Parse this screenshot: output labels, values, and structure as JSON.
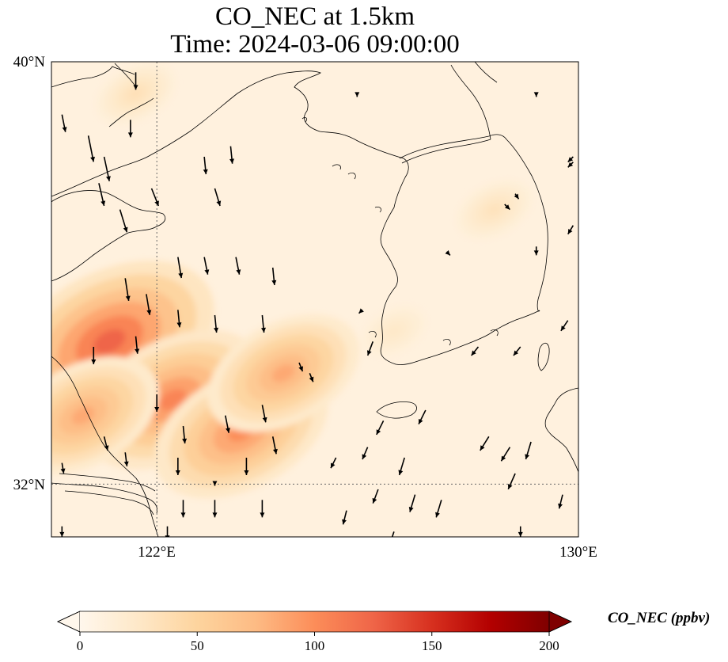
{
  "title": {
    "line1": "CO_NEC at 1.5km",
    "line2": "Time: 2024-03-06 09:00:00"
  },
  "map": {
    "lon_range": [
      120,
      130
    ],
    "lat_range": [
      31,
      40
    ],
    "lat_ticks": [
      {
        "value": 40,
        "label": "40°N"
      },
      {
        "value": 32,
        "label": "32°N"
      }
    ],
    "lon_ticks": [
      {
        "value": 122,
        "label": "122°E"
      },
      {
        "value": 130,
        "label": "130°E"
      }
    ],
    "gridlines": {
      "lon": [
        122
      ],
      "lat": [
        32
      ],
      "style": "dotted"
    },
    "field": {
      "name": "CO_NEC",
      "units": "ppbv",
      "background_value": 10,
      "plumes": [
        {
          "lon": 121.1,
          "lat": 34.7,
          "value": 125
        },
        {
          "lon": 122.3,
          "lat": 33.6,
          "value": 105
        },
        {
          "lon": 123.6,
          "lat": 33.0,
          "value": 100
        },
        {
          "lon": 124.4,
          "lat": 34.1,
          "value": 85
        },
        {
          "lon": 120.6,
          "lat": 33.3,
          "value": 85
        },
        {
          "lon": 121.6,
          "lat": 39.4,
          "value": 35
        },
        {
          "lon": 128.4,
          "lat": 37.2,
          "value": 32
        },
        {
          "lon": 126.5,
          "lat": 34.9,
          "value": 25
        }
      ]
    }
  },
  "wind_vectors": [
    {
      "lon": 121.6,
      "lat": 39.8,
      "u": 0.0,
      "v": -1.0
    },
    {
      "lon": 120.2,
      "lat": 39.0,
      "u": 0.2,
      "v": -1.0
    },
    {
      "lon": 120.7,
      "lat": 38.6,
      "u": 0.3,
      "v": -1.5
    },
    {
      "lon": 121.5,
      "lat": 38.9,
      "u": 0.0,
      "v": -1.0
    },
    {
      "lon": 121.0,
      "lat": 38.2,
      "u": 0.3,
      "v": -1.4
    },
    {
      "lon": 120.9,
      "lat": 37.7,
      "u": 0.3,
      "v": -1.3
    },
    {
      "lon": 121.3,
      "lat": 37.2,
      "u": 0.4,
      "v": -1.3
    },
    {
      "lon": 121.9,
      "lat": 37.6,
      "u": 0.4,
      "v": -1.0
    },
    {
      "lon": 122.9,
      "lat": 38.2,
      "u": 0.1,
      "v": -1.0
    },
    {
      "lon": 123.4,
      "lat": 38.4,
      "u": 0.1,
      "v": -1.0
    },
    {
      "lon": 123.1,
      "lat": 37.6,
      "u": 0.3,
      "v": -1.0
    },
    {
      "lon": 121.4,
      "lat": 35.9,
      "u": 0.2,
      "v": -1.3
    },
    {
      "lon": 121.8,
      "lat": 35.6,
      "u": 0.2,
      "v": -1.2
    },
    {
      "lon": 122.4,
      "lat": 36.3,
      "u": 0.2,
      "v": -1.2
    },
    {
      "lon": 122.9,
      "lat": 36.3,
      "u": 0.2,
      "v": -1.0
    },
    {
      "lon": 123.5,
      "lat": 36.3,
      "u": 0.2,
      "v": -1.0
    },
    {
      "lon": 124.2,
      "lat": 36.1,
      "u": 0.1,
      "v": -1.0
    },
    {
      "lon": 122.4,
      "lat": 35.3,
      "u": 0.1,
      "v": -1.0
    },
    {
      "lon": 123.1,
      "lat": 35.2,
      "u": 0.1,
      "v": -1.0
    },
    {
      "lon": 124.0,
      "lat": 35.2,
      "u": 0.1,
      "v": -1.0
    },
    {
      "lon": 120.8,
      "lat": 34.6,
      "u": 0.0,
      "v": -1.0
    },
    {
      "lon": 121.6,
      "lat": 34.8,
      "u": 0.1,
      "v": -1.0
    },
    {
      "lon": 124.7,
      "lat": 34.3,
      "u": 0.2,
      "v": -0.5
    },
    {
      "lon": 124.9,
      "lat": 34.1,
      "u": 0.2,
      "v": -0.5
    },
    {
      "lon": 122.0,
      "lat": 33.7,
      "u": 0.0,
      "v": -1.0
    },
    {
      "lon": 123.3,
      "lat": 33.3,
      "u": 0.2,
      "v": -1.0
    },
    {
      "lon": 124.0,
      "lat": 33.5,
      "u": 0.2,
      "v": -1.0
    },
    {
      "lon": 122.5,
      "lat": 33.1,
      "u": 0.1,
      "v": -1.0
    },
    {
      "lon": 124.2,
      "lat": 32.9,
      "u": 0.2,
      "v": -1.0
    },
    {
      "lon": 121.0,
      "lat": 32.9,
      "u": 0.2,
      "v": -0.8
    },
    {
      "lon": 121.4,
      "lat": 32.6,
      "u": 0.1,
      "v": -0.8
    },
    {
      "lon": 122.4,
      "lat": 32.5,
      "u": 0.0,
      "v": -1.0
    },
    {
      "lon": 123.7,
      "lat": 32.5,
      "u": 0.0,
      "v": -1.0
    },
    {
      "lon": 120.2,
      "lat": 32.4,
      "u": 0.1,
      "v": -0.6
    },
    {
      "lon": 122.5,
      "lat": 31.7,
      "u": 0.0,
      "v": -1.0
    },
    {
      "lon": 123.1,
      "lat": 31.7,
      "u": 0.0,
      "v": -1.0
    },
    {
      "lon": 124.0,
      "lat": 31.7,
      "u": 0.0,
      "v": -1.0
    },
    {
      "lon": 122.2,
      "lat": 31.2,
      "u": 0.0,
      "v": -0.8
    },
    {
      "lon": 120.2,
      "lat": 31.2,
      "u": 0.0,
      "v": -0.6
    },
    {
      "lon": 126.3,
      "lat": 33.2,
      "u": -0.4,
      "v": -0.8
    },
    {
      "lon": 127.1,
      "lat": 33.4,
      "u": -0.4,
      "v": -0.8
    },
    {
      "lon": 126.0,
      "lat": 32.7,
      "u": -0.3,
      "v": -0.7
    },
    {
      "lon": 125.4,
      "lat": 32.5,
      "u": -0.3,
      "v": -0.6
    },
    {
      "lon": 126.7,
      "lat": 32.5,
      "u": -0.3,
      "v": -1.0
    },
    {
      "lon": 126.2,
      "lat": 31.9,
      "u": -0.3,
      "v": -0.8
    },
    {
      "lon": 126.9,
      "lat": 31.8,
      "u": -0.3,
      "v": -1.0
    },
    {
      "lon": 127.4,
      "lat": 31.7,
      "u": -0.3,
      "v": -1.0
    },
    {
      "lon": 128.3,
      "lat": 32.9,
      "u": -0.5,
      "v": -0.8
    },
    {
      "lon": 128.7,
      "lat": 32.7,
      "u": -0.5,
      "v": -0.8
    },
    {
      "lon": 129.1,
      "lat": 32.8,
      "u": -0.3,
      "v": -1.0
    },
    {
      "lon": 128.8,
      "lat": 32.2,
      "u": -0.4,
      "v": -0.9
    },
    {
      "lon": 129.7,
      "lat": 31.8,
      "u": -0.2,
      "v": -0.8
    },
    {
      "lon": 125.6,
      "lat": 31.5,
      "u": -0.2,
      "v": -0.8
    },
    {
      "lon": 126.5,
      "lat": 31.1,
      "u": -0.2,
      "v": -0.6
    },
    {
      "lon": 128.9,
      "lat": 31.2,
      "u": 0.0,
      "v": -0.6
    },
    {
      "lon": 129.8,
      "lat": 35.1,
      "u": -0.4,
      "v": -0.6
    },
    {
      "lon": 129.9,
      "lat": 36.9,
      "u": -0.3,
      "v": -0.5
    },
    {
      "lon": 128.9,
      "lat": 34.6,
      "u": -0.4,
      "v": -0.5
    },
    {
      "lon": 128.1,
      "lat": 34.6,
      "u": -0.4,
      "v": -0.5
    },
    {
      "lon": 129.2,
      "lat": 36.5,
      "u": 0.0,
      "v": -0.5
    },
    {
      "lon": 128.8,
      "lat": 37.5,
      "u": 0.2,
      "v": -0.3
    },
    {
      "lon": 126.1,
      "lat": 34.7,
      "u": -0.3,
      "v": -0.8
    },
    {
      "lon": 129.9,
      "lat": 38.2,
      "u": -0.3,
      "v": -0.3
    },
    {
      "lon": 129.9,
      "lat": 38.1,
      "u": -0.3,
      "v": -0.3
    },
    {
      "lon": 128.6,
      "lat": 37.3,
      "u": 0.3,
      "v": -0.3
    },
    {
      "lon": 127.5,
      "lat": 36.4,
      "u": 0.2,
      "v": -0.2
    },
    {
      "lon": 125.8,
      "lat": 39.4,
      "u": 0.0,
      "v": -0.2
    },
    {
      "lon": 129.2,
      "lat": 39.4,
      "u": 0.0,
      "v": -0.2
    },
    {
      "lon": 125.9,
      "lat": 35.3,
      "u": -0.2,
      "v": -0.2
    },
    {
      "lon": 123.1,
      "lat": 32.0,
      "u": 0.0,
      "v": -0.1
    }
  ],
  "colorbar": {
    "min": 0,
    "max": 200,
    "ticks": [
      "0",
      "50",
      "100",
      "150",
      "200"
    ],
    "extend": "both",
    "label": "CO_NEC (ppbv)",
    "colormap": "OrRd",
    "colormap_stops": [
      "#fff7ec",
      "#fee8c8",
      "#fdd49e",
      "#fdbb84",
      "#fc8d59",
      "#ef6548",
      "#d7301f",
      "#b30000",
      "#7f0000"
    ],
    "over_color": "#7f0000",
    "under_color": "#fff7ec"
  },
  "coastline_color": "#000000",
  "gridline_color": "#666666"
}
